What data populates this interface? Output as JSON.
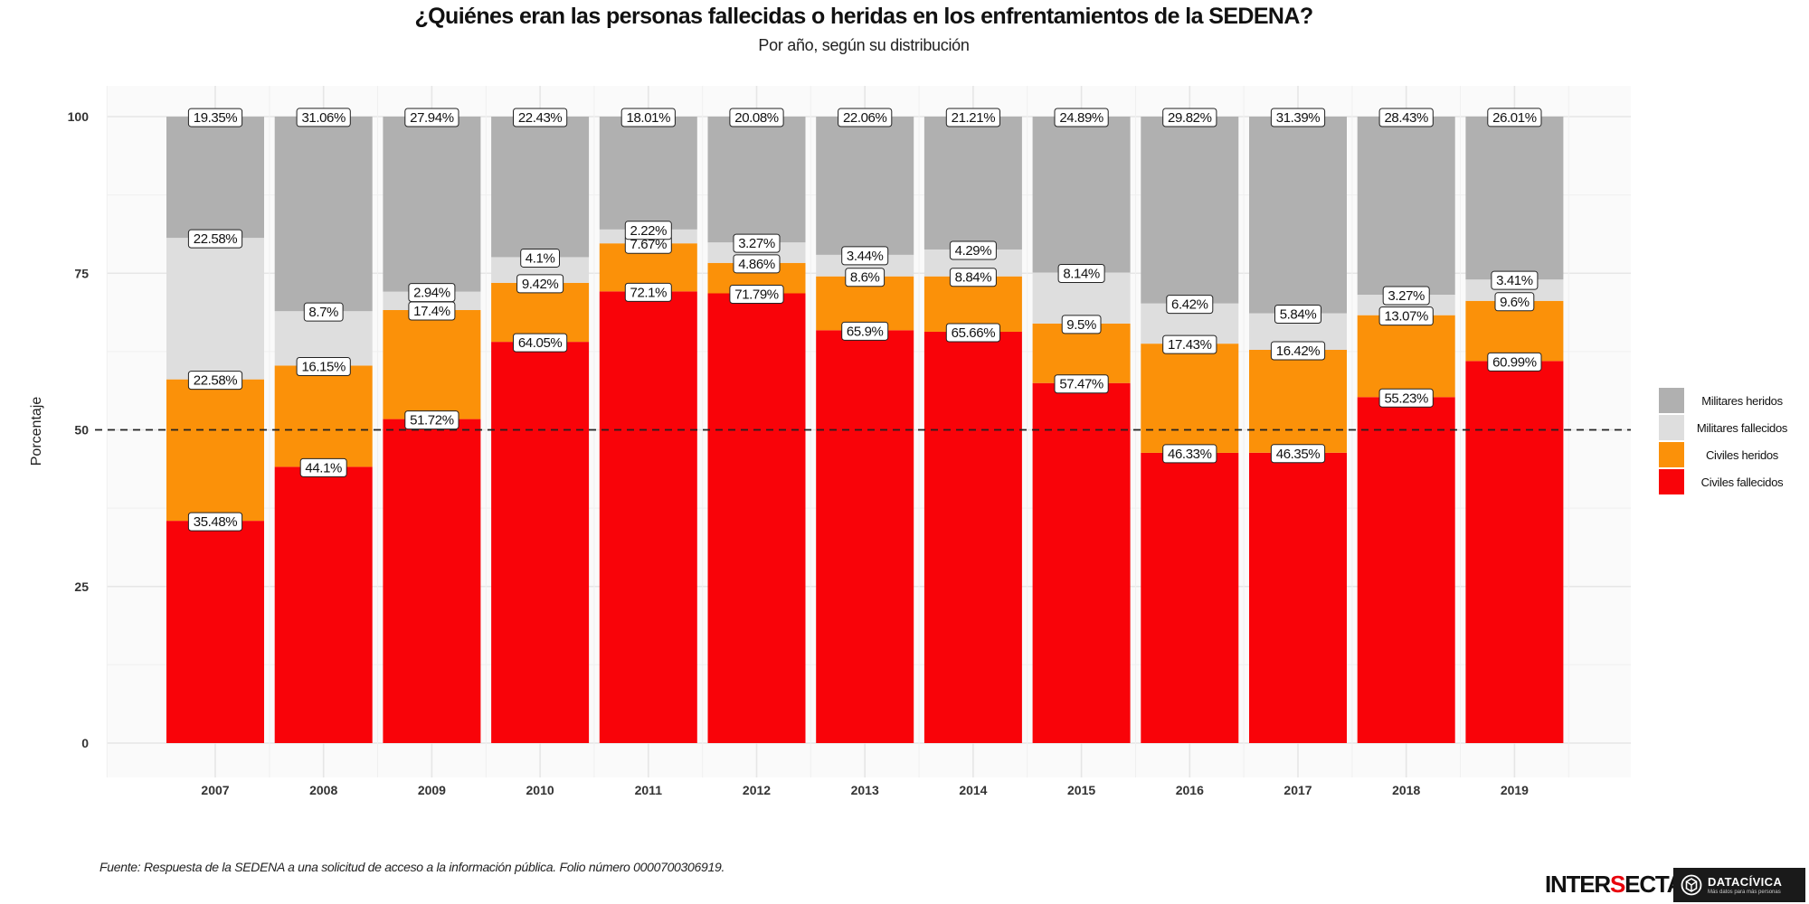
{
  "chart_data": {
    "type": "bar",
    "stacked": true,
    "title": "¿Quiénes eran las personas fallecidas o heridas en los enfrentamientos de la SEDENA?",
    "subtitle": "Por año, según su distribución",
    "xlabel": "",
    "ylabel": "Porcentaje",
    "ylim": [
      0,
      100
    ],
    "yticks": [
      0,
      25,
      50,
      75,
      100
    ],
    "reference_line": {
      "y": 50,
      "style": "dashed"
    },
    "categories": [
      "2007",
      "2008",
      "2009",
      "2010",
      "2011",
      "2012",
      "2013",
      "2014",
      "2015",
      "2016",
      "2017",
      "2018",
      "2019"
    ],
    "series": [
      {
        "name": "Civiles fallecidos",
        "color": "#f90309",
        "values": [
          35.48,
          44.1,
          51.72,
          64.05,
          72.1,
          71.79,
          65.9,
          65.66,
          57.47,
          46.33,
          46.35,
          55.23,
          60.99
        ],
        "labels": [
          "35.48%",
          "44.1%",
          "51.72%",
          "64.05%",
          "72.1%",
          "71.79%",
          "65.9%",
          "65.66%",
          "57.47%",
          "46.33%",
          "46.35%",
          "55.23%",
          "60.99%"
        ]
      },
      {
        "name": "Civiles heridos",
        "color": "#fb9109",
        "values": [
          22.58,
          16.15,
          17.4,
          9.42,
          7.67,
          4.86,
          8.6,
          8.84,
          9.5,
          17.43,
          16.42,
          13.07,
          9.6
        ],
        "labels": [
          "22.58%",
          "16.15%",
          "17.4%",
          "9.42%",
          "7.67%",
          "4.86%",
          "8.6%",
          "8.84%",
          "9.5%",
          "17.43%",
          "16.42%",
          "13.07%",
          "9.6%"
        ]
      },
      {
        "name": "Militares fallecidos",
        "color": "#dedede",
        "values": [
          22.58,
          8.7,
          2.94,
          4.1,
          2.22,
          3.27,
          3.44,
          4.29,
          8.14,
          6.42,
          5.84,
          3.27,
          3.41
        ],
        "labels": [
          "22.58%",
          "8.7%",
          "2.94%",
          "4.1%",
          "2.22%",
          "3.27%",
          "3.44%",
          "4.29%",
          "8.14%",
          "6.42%",
          "5.84%",
          "3.27%",
          "3.41%"
        ]
      },
      {
        "name": "Militares heridos",
        "color": "#b0b0b0",
        "values": [
          19.35,
          31.06,
          27.94,
          22.43,
          18.01,
          20.08,
          22.06,
          21.21,
          24.89,
          29.82,
          31.39,
          28.43,
          26.01
        ],
        "labels": [
          "19.35%",
          "31.06%",
          "27.94%",
          "22.43%",
          "18.01%",
          "20.08%",
          "22.06%",
          "21.21%",
          "24.89%",
          "29.82%",
          "31.39%",
          "28.43%",
          "26.01%"
        ]
      }
    ],
    "legend": {
      "position": "right",
      "order": [
        "Militares heridos",
        "Militares fallecidos",
        "Civiles heridos",
        "Civiles fallecidos"
      ]
    }
  },
  "caption": "Fuente: Respuesta de la SEDENA a una solicitud de acceso a la información pública. Folio número 0000700306919.",
  "logos": {
    "intersecta_before": "INTER",
    "intersecta_accent": "S",
    "intersecta_after": "ECTA",
    "datacivica_name": "DATACÍVICA",
    "datacivica_tagline": "Más datos para más personas"
  }
}
